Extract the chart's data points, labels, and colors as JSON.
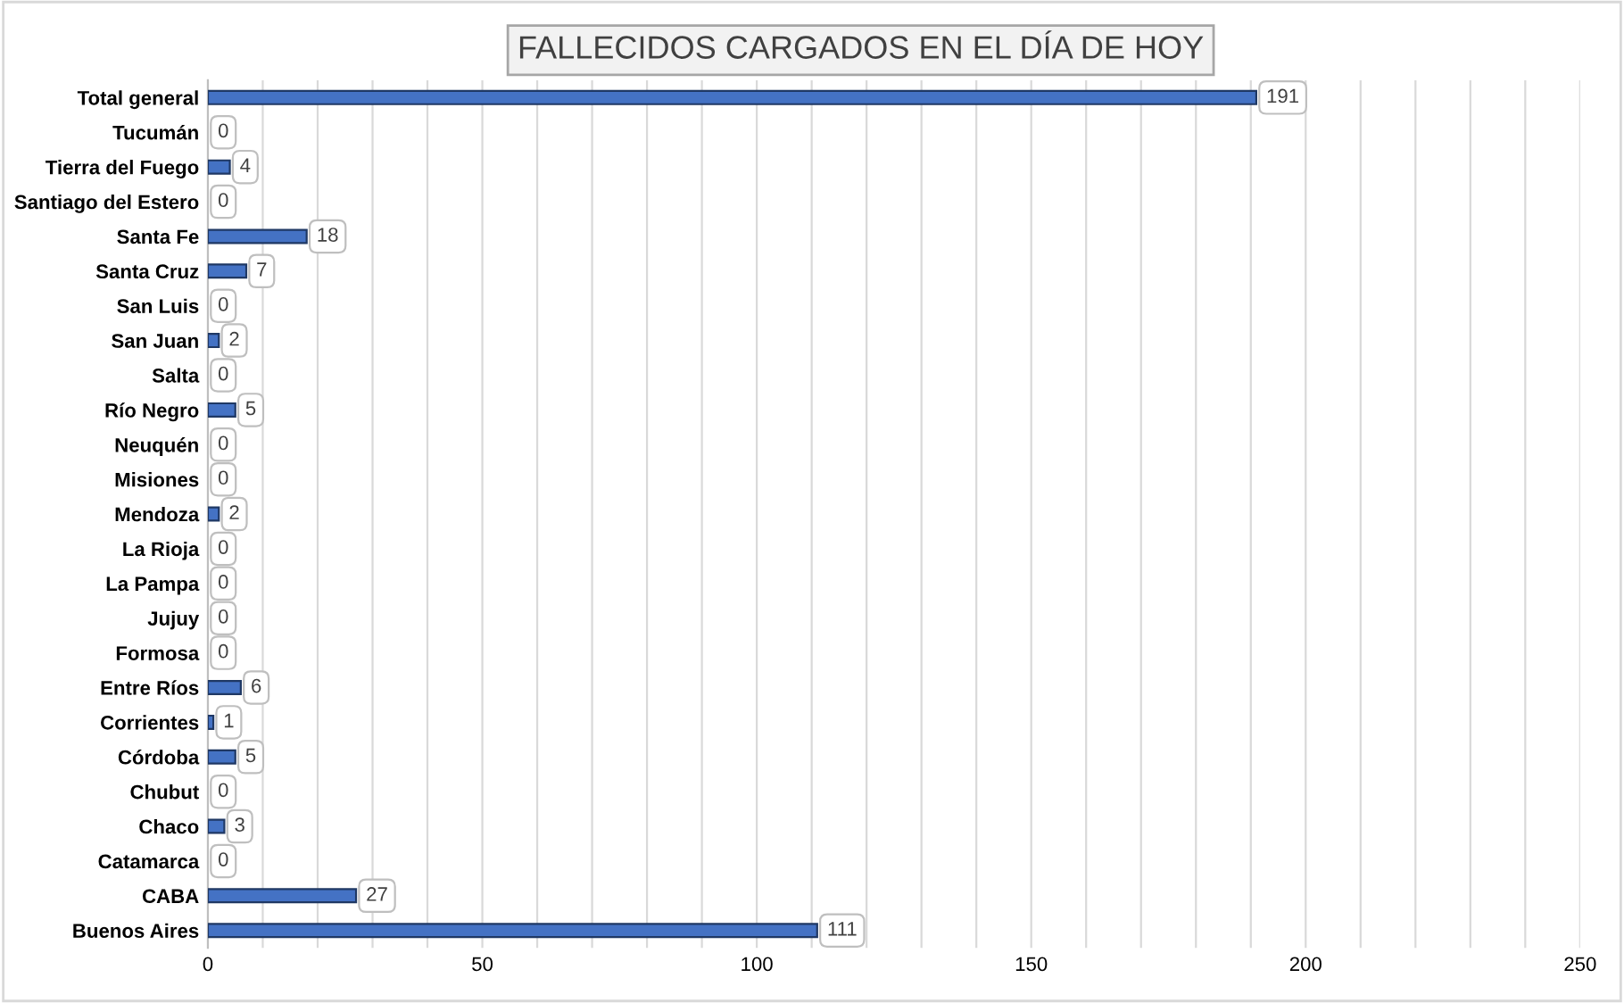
{
  "chart_data": {
    "type": "bar",
    "orientation": "horizontal",
    "title": "FALLECIDOS CARGADOS EN EL DÍA DE HOY",
    "categories": [
      "Total general",
      "Tucumán",
      "Tierra del Fuego",
      "Santiago del Estero",
      "Santa Fe",
      "Santa Cruz",
      "San Luis",
      "San Juan",
      "Salta",
      "Río Negro",
      "Neuquén",
      "Misiones",
      "Mendoza",
      "La Rioja",
      "La Pampa",
      "Jujuy",
      "Formosa",
      "Entre Ríos",
      "Corrientes",
      "Córdoba",
      "Chubut",
      "Chaco",
      "Catamarca",
      "CABA",
      "Buenos Aires"
    ],
    "values": [
      191,
      0,
      4,
      0,
      18,
      7,
      0,
      2,
      0,
      5,
      0,
      0,
      2,
      0,
      0,
      0,
      0,
      6,
      1,
      5,
      0,
      3,
      0,
      27,
      111
    ],
    "color": "#4472c4",
    "data_labels": true,
    "grid": "x",
    "xlim": [
      0,
      250
    ],
    "xticks": [
      0,
      {
        "value": 10,
        "label": null
      },
      {
        "value": 20,
        "label": null
      },
      {
        "value": 30,
        "label": null
      },
      {
        "value": 40,
        "label": null
      },
      50,
      {
        "value": 60,
        "label": null
      },
      {
        "value": 70,
        "label": null
      },
      {
        "value": 80,
        "label": null
      },
      {
        "value": 90,
        "label": null
      },
      100,
      {
        "value": 110,
        "label": null
      },
      {
        "value": 120,
        "label": null
      },
      {
        "value": 130,
        "label": null
      },
      {
        "value": 140,
        "label": null
      },
      150,
      {
        "value": 160,
        "label": null
      },
      {
        "value": 170,
        "label": null
      },
      {
        "value": 180,
        "label": null
      },
      {
        "value": 190,
        "label": null
      },
      200,
      {
        "value": 210,
        "label": null
      },
      {
        "value": 220,
        "label": null
      },
      {
        "value": 230,
        "label": null
      },
      {
        "value": 240,
        "label": null
      },
      250
    ]
  }
}
